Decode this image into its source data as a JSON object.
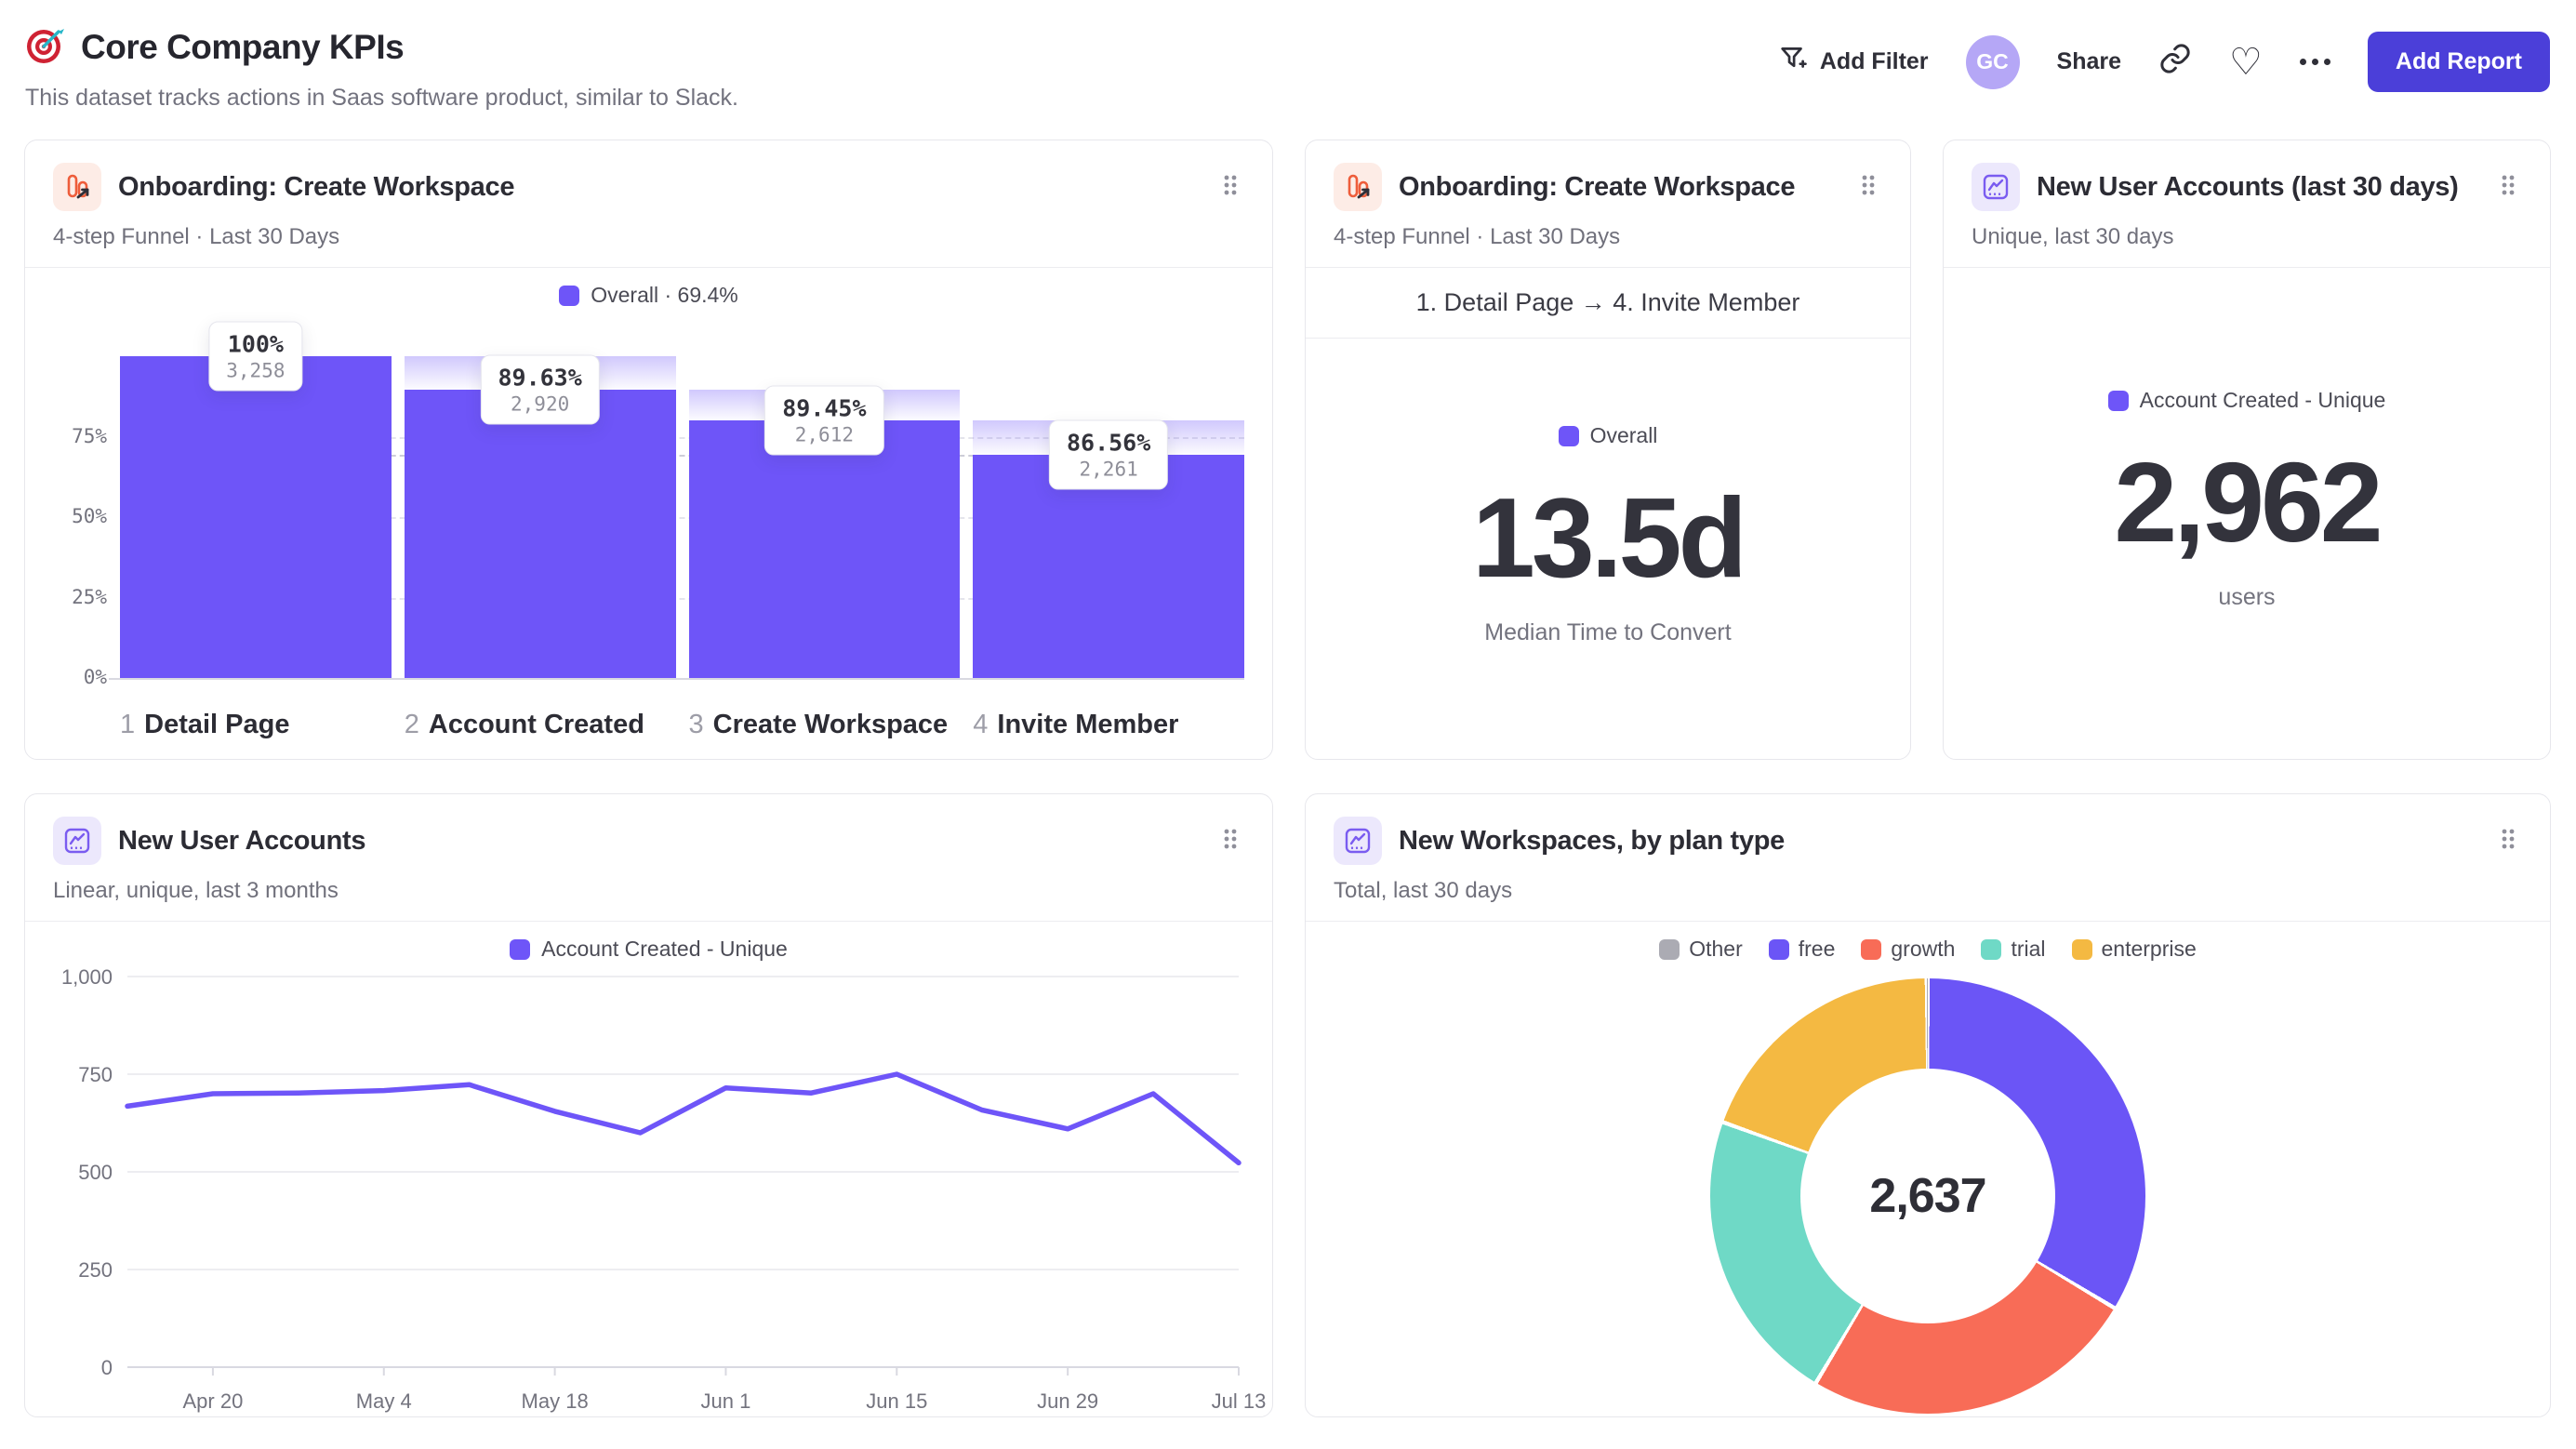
{
  "header": {
    "title": "Core Company KPIs",
    "subtitle": "This dataset tracks actions in Saas software product, similar to Slack.",
    "actions": {
      "add_filter_label": "Add Filter",
      "avatar_initials": "GC",
      "share_label": "Share",
      "add_report_label": "Add Report"
    }
  },
  "colors": {
    "accent_purple": "#6e55f8",
    "button_purple": "#4b3fd9",
    "avatar_purple": "#b5a7f6",
    "donut_free": "#6b55f6",
    "donut_growth": "#f86c57",
    "donut_trial": "#6fd9c6",
    "donut_enterprise": "#f4b942",
    "donut_other": "#ababb3"
  },
  "cards": {
    "funnel": {
      "title": "Onboarding: Create Workspace",
      "subtitle": "4-step Funnel · Last 30 Days",
      "legend_label": "Overall · 69.4%"
    },
    "median_time": {
      "title": "Onboarding: Create Workspace",
      "subtitle": "4-step Funnel · Last 30 Days",
      "range_label": "1. Detail Page → 4. Invite Member",
      "legend_label": "Overall",
      "value": "13.5d",
      "caption": "Median Time to Convert"
    },
    "new_accounts": {
      "title": "New User Accounts (last 30 days)",
      "subtitle": "Unique, last 30 days",
      "legend_label": "Account Created - Unique",
      "value": "2,962",
      "caption": "users"
    },
    "accounts_trend": {
      "title": "New User Accounts",
      "subtitle": "Linear, unique, last 3 months",
      "legend_label": "Account Created - Unique"
    },
    "workspaces": {
      "title": "New Workspaces, by plan type",
      "subtitle": "Total, last 30 days",
      "center_label": "2,637",
      "legend": [
        {
          "label": "Other",
          "color": "#ababb3"
        },
        {
          "label": "free",
          "color": "#6b55f6"
        },
        {
          "label": "growth",
          "color": "#f86c57"
        },
        {
          "label": "trial",
          "color": "#6fd9c6"
        },
        {
          "label": "enterprise",
          "color": "#f4b942"
        }
      ]
    }
  },
  "chart_data": [
    {
      "id": "onboarding-funnel",
      "type": "bar",
      "title": "Onboarding: Create Workspace",
      "legend": "Overall · 69.4%",
      "overall_pct": 69.4,
      "y_ticks": [
        "0%",
        "25%",
        "50%",
        "75%"
      ],
      "y_ticks_values": [
        0,
        25,
        50,
        75
      ],
      "steps": [
        {
          "index": 1,
          "label": "Detail Page",
          "pct_label": "100%",
          "count_label": "3,258",
          "count": 3258,
          "cumulative_pct": 100
        },
        {
          "index": 2,
          "label": "Account Created",
          "pct_label": "89.63%",
          "count_label": "2,920",
          "count": 2920,
          "cumulative_pct": 89.63
        },
        {
          "index": 3,
          "label": "Create Workspace",
          "pct_label": "89.45%",
          "count_label": "2,612",
          "count": 2612,
          "cumulative_pct": 80.17
        },
        {
          "index": 4,
          "label": "Invite Member",
          "pct_label": "86.56%",
          "count_label": "2,261",
          "count": 2261,
          "cumulative_pct": 69.4
        }
      ]
    },
    {
      "id": "new-user-accounts-line",
      "type": "line",
      "series": [
        {
          "name": "Account Created - Unique",
          "color": "#6e55f8",
          "values": [
            668,
            700,
            702,
            708,
            723,
            655,
            600,
            715,
            702,
            750,
            658,
            610,
            700,
            523
          ]
        }
      ],
      "ylim": [
        0,
        1000
      ],
      "y_ticks": [
        0,
        250,
        500,
        750,
        1000
      ],
      "y_tick_labels": [
        "0",
        "250",
        "500",
        "750",
        "1,000"
      ],
      "x_tick_labels": [
        "Apr 20",
        "May 4",
        "May 18",
        "Jun 1",
        "Jun 15",
        "Jun 29",
        "Jul 13"
      ],
      "x_tick_indices": [
        1,
        3,
        5,
        7,
        9,
        11,
        13
      ]
    },
    {
      "id": "workspaces-donut",
      "type": "pie",
      "total": 2637,
      "total_label": "2,637",
      "slices": [
        {
          "label": "free",
          "value": 886,
          "color": "#6b55f6"
        },
        {
          "label": "growth",
          "value": 659,
          "color": "#f86c57"
        },
        {
          "label": "trial",
          "value": 578,
          "color": "#6fd9c6"
        },
        {
          "label": "enterprise",
          "value": 512,
          "color": "#f4b942"
        },
        {
          "label": "Other",
          "value": 2,
          "color": "#ababb3"
        }
      ]
    }
  ]
}
